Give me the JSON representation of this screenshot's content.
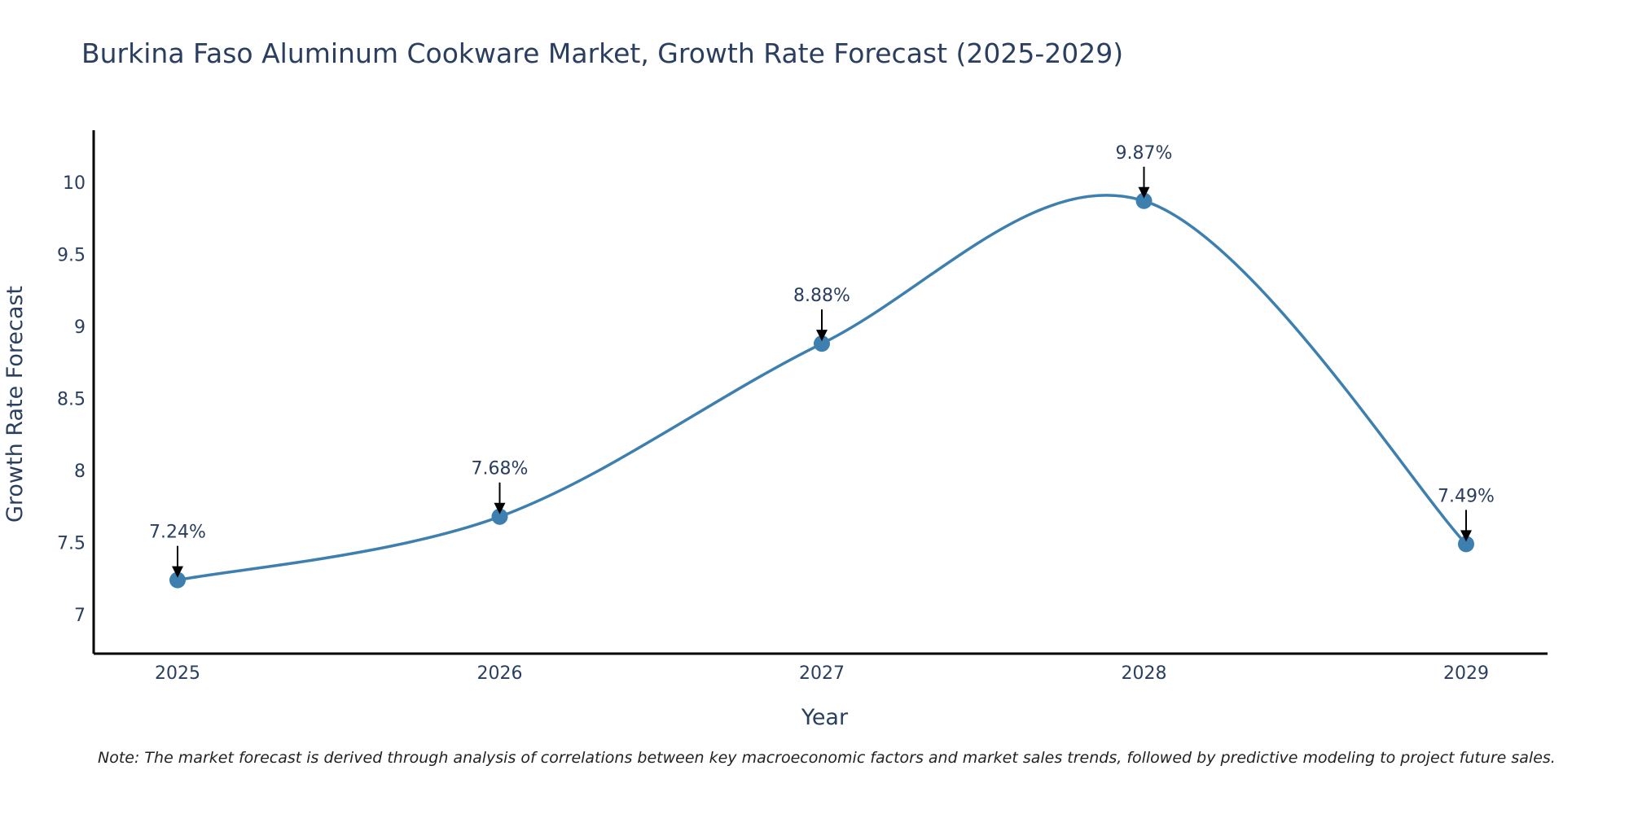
{
  "chart_data": {
    "type": "line",
    "title": "Burkina Faso Aluminum Cookware Market, Growth Rate Forecast (2025-2029)",
    "xlabel": "Year",
    "ylabel": "Growth Rate Forecast",
    "x": [
      "2025",
      "2026",
      "2027",
      "2028",
      "2029"
    ],
    "values": [
      7.24,
      7.68,
      8.88,
      9.87,
      7.49
    ],
    "data_labels": [
      "7.24%",
      "7.68%",
      "8.88%",
      "9.87%",
      "7.49%"
    ],
    "yticks": [
      7,
      7.5,
      8,
      8.5,
      9,
      9.5,
      10
    ],
    "ytick_labels": [
      "7",
      "7.5",
      "8",
      "8.5",
      "9",
      "9.5",
      "10"
    ],
    "ylim": [
      6.73,
      10.36
    ],
    "line_color": "#3d7fae",
    "marker_color": "#3d7fae",
    "grid": false,
    "legend": "none"
  },
  "note": "Note: The market forecast is derived through analysis of correlations between key macroeconomic factors and market sales trends, followed by predictive modeling to project future sales."
}
